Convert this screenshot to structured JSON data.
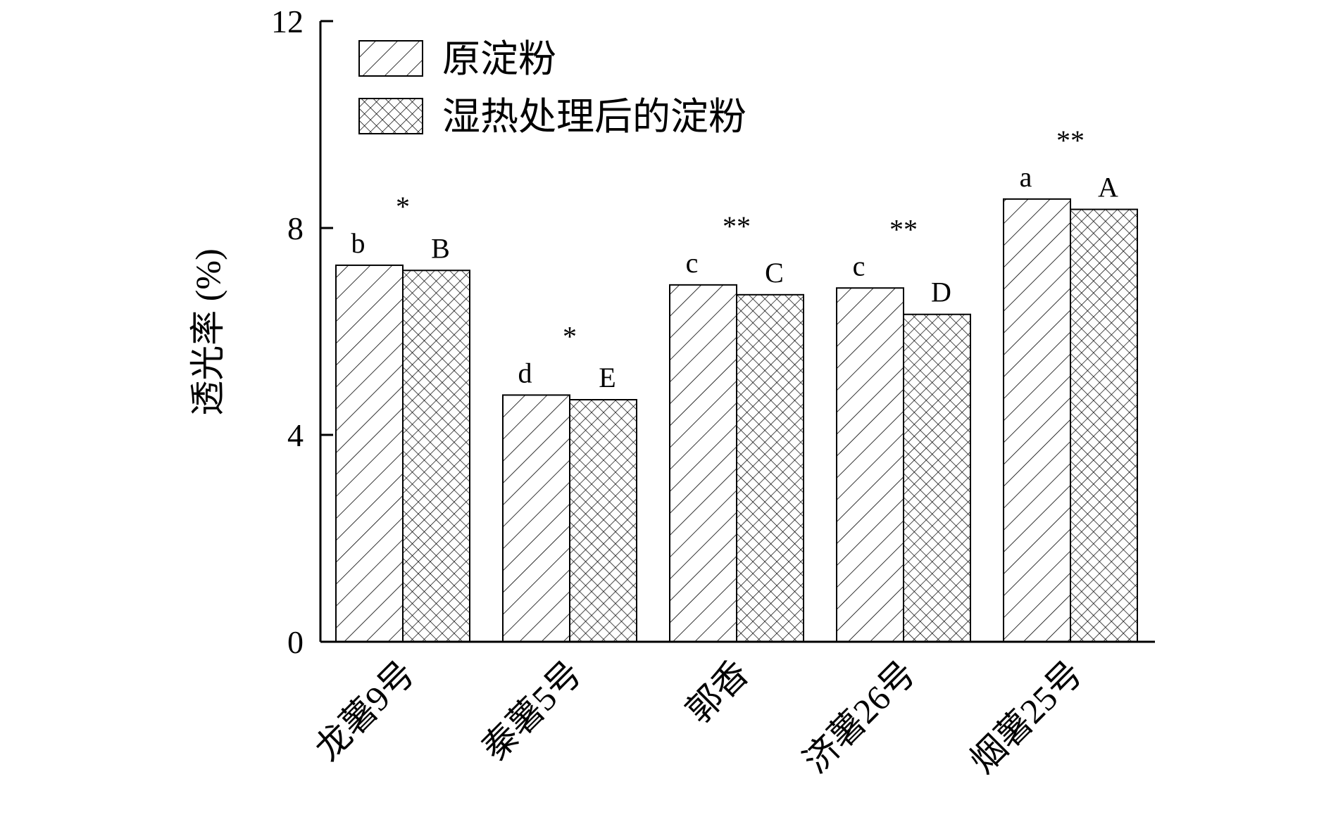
{
  "chart_data": {
    "type": "bar",
    "title": "",
    "xlabel": "",
    "ylabel": "透光率 (%)",
    "ylim": [
      0,
      12
    ],
    "yticks": [
      0,
      4,
      8,
      12
    ],
    "grid": false,
    "legend_position": "top-left",
    "categories": [
      "龙薯9号",
      "秦薯5号",
      "郭香",
      "济薯26号",
      "烟薯25号"
    ],
    "series": [
      {
        "name": "原淀粉",
        "pattern": "diagonal-hatch",
        "values": [
          7.28,
          4.77,
          6.9,
          6.84,
          8.56
        ],
        "labels": [
          "b",
          "d",
          "c",
          "c",
          "a"
        ]
      },
      {
        "name": "湿热处理后的淀粉",
        "pattern": "cross-hatch",
        "values": [
          7.18,
          4.68,
          6.71,
          6.33,
          8.36
        ],
        "labels": [
          "B",
          "E",
          "C",
          "D",
          "A"
        ]
      }
    ],
    "significance": [
      "*",
      "*",
      "**",
      "**",
      "**"
    ],
    "colors": {
      "axis": "#000000",
      "bar_fill": "#ffffff",
      "hatch": "#000000"
    }
  }
}
